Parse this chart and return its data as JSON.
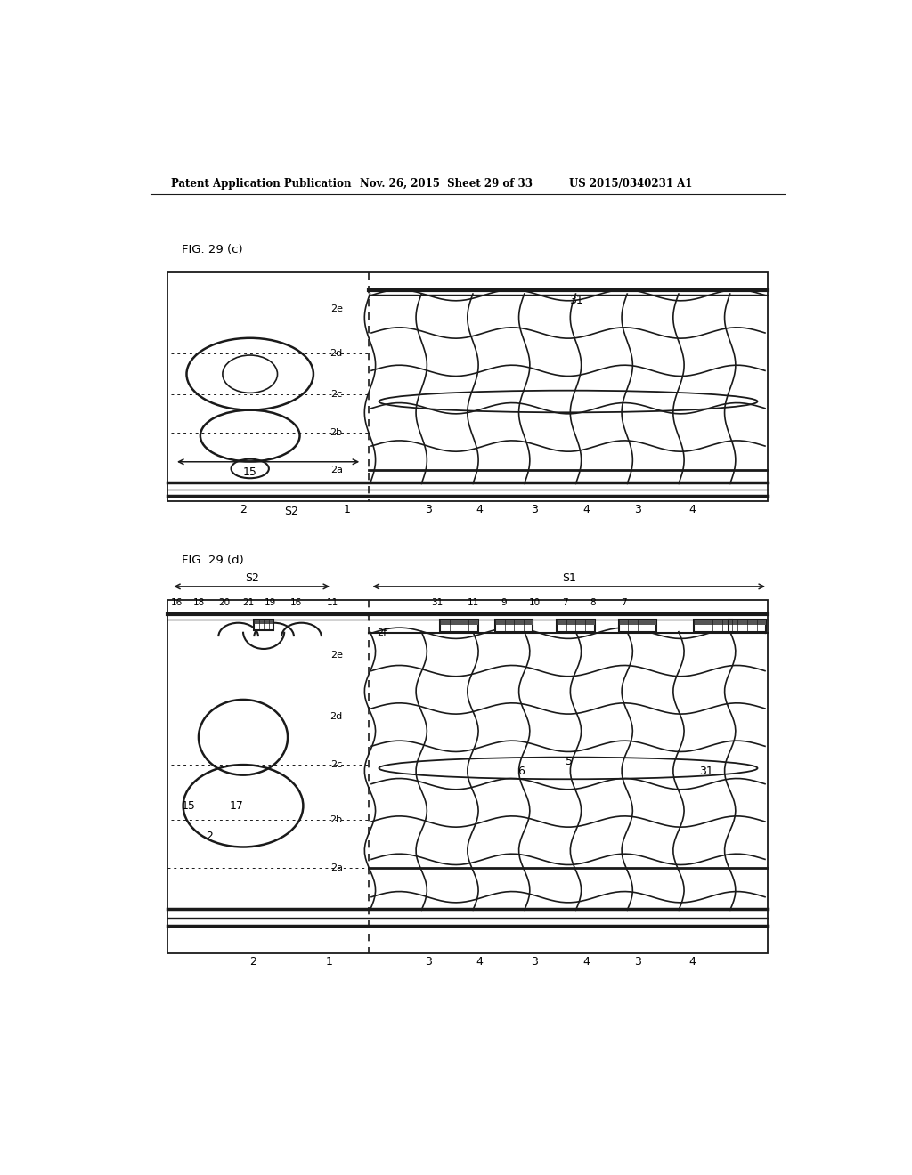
{
  "header_left": "Patent Application Publication",
  "header_mid": "Nov. 26, 2015  Sheet 29 of 33",
  "header_right": "US 2015/0340231 A1",
  "fig_c_label": "FIG. 29 (c)",
  "fig_d_label": "FIG. 29 (d)",
  "bg_color": "#ffffff",
  "line_color": "#1a1a1a"
}
